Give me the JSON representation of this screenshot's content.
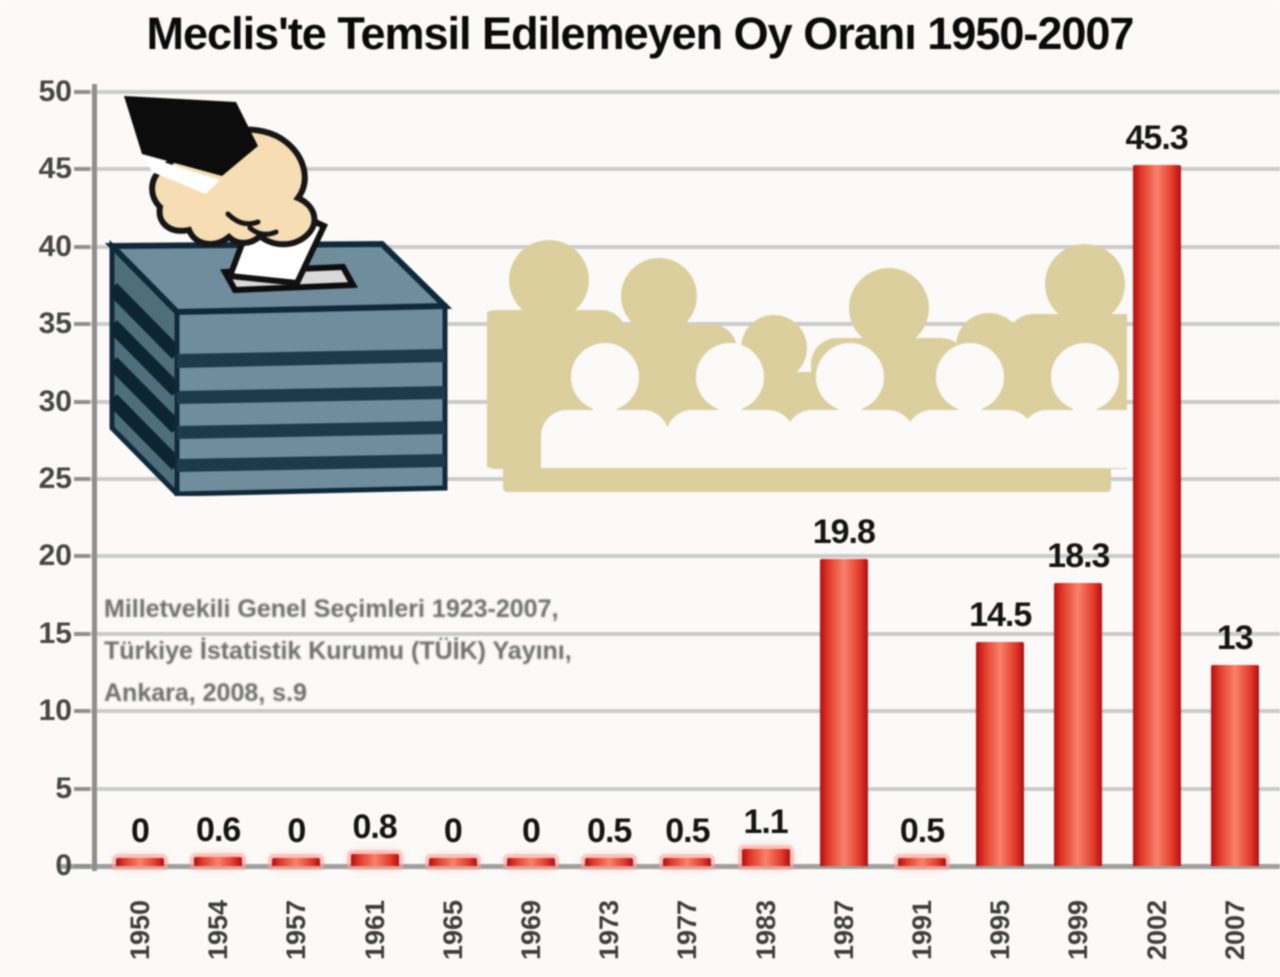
{
  "title": "Meclis'te Temsil Edilemeyen Oy Oranı 1950-2007",
  "source_note": {
    "line1": "Milletvekili Genel Seçimleri 1923-2007,",
    "line2": "Türkiye İstatistik Kurumu (TÜİK) Yayını,",
    "line3": "Ankara, 2008, s.9"
  },
  "chart_data": {
    "type": "bar",
    "title": "Meclis'te Temsil Edilemeyen Oy Oranı 1950-2007",
    "categories": [
      "1950",
      "1954",
      "1957",
      "1961",
      "1965",
      "1969",
      "1973",
      "1977",
      "1983",
      "1987",
      "1991",
      "1995",
      "1999",
      "2002",
      "2007"
    ],
    "values": [
      0,
      0.6,
      0,
      0.8,
      0,
      0,
      0.5,
      0.5,
      1.1,
      19.8,
      0.5,
      14.5,
      18.3,
      45.3,
      13
    ],
    "bar_labels": [
      "0",
      "0.6",
      "0",
      "0.8",
      "0",
      "0",
      "0.5",
      "0.5",
      "1.1",
      "19.8",
      "0.5",
      "14.5",
      "18.3",
      "45.3",
      "13"
    ],
    "xlabel": "",
    "ylabel": "",
    "ylim": [
      0,
      50
    ],
    "yticks": [
      0,
      5,
      10,
      15,
      20,
      25,
      30,
      35,
      40,
      45,
      50
    ],
    "grid": true,
    "legend": false,
    "bar_color": "#e02a1f"
  },
  "illustrations": {
    "ballot_box": {
      "description": "hand dropping ballot into striped ballot box",
      "box_color": "#6f8d9c",
      "stripe_color": "#10293a",
      "hand_color": "#f6ddb3",
      "sleeve_color": "#0c0c0c",
      "ballot_color": "#ffffff"
    },
    "crowd": {
      "description": "crowd of voter silhouettes",
      "color": "#dbcf9e",
      "back_row_figures": 6,
      "front_row_figures": 5
    }
  },
  "colors": {
    "background": "#fbfaf8",
    "bar_red": "#e02a1f",
    "gridline": "#cbcbcb",
    "axis": "#a0a0a0",
    "text": "#141414"
  }
}
